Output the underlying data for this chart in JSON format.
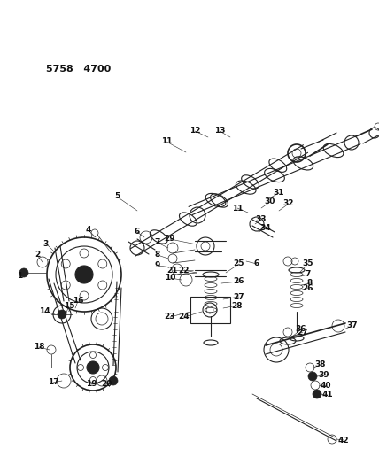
{
  "title": "5758   4700",
  "bg_color": "#ffffff",
  "line_color": "#222222",
  "fig_width": 4.28,
  "fig_height": 5.33,
  "dpi": 100,
  "label_fontsize": 6.5,
  "label_color": "#111111"
}
